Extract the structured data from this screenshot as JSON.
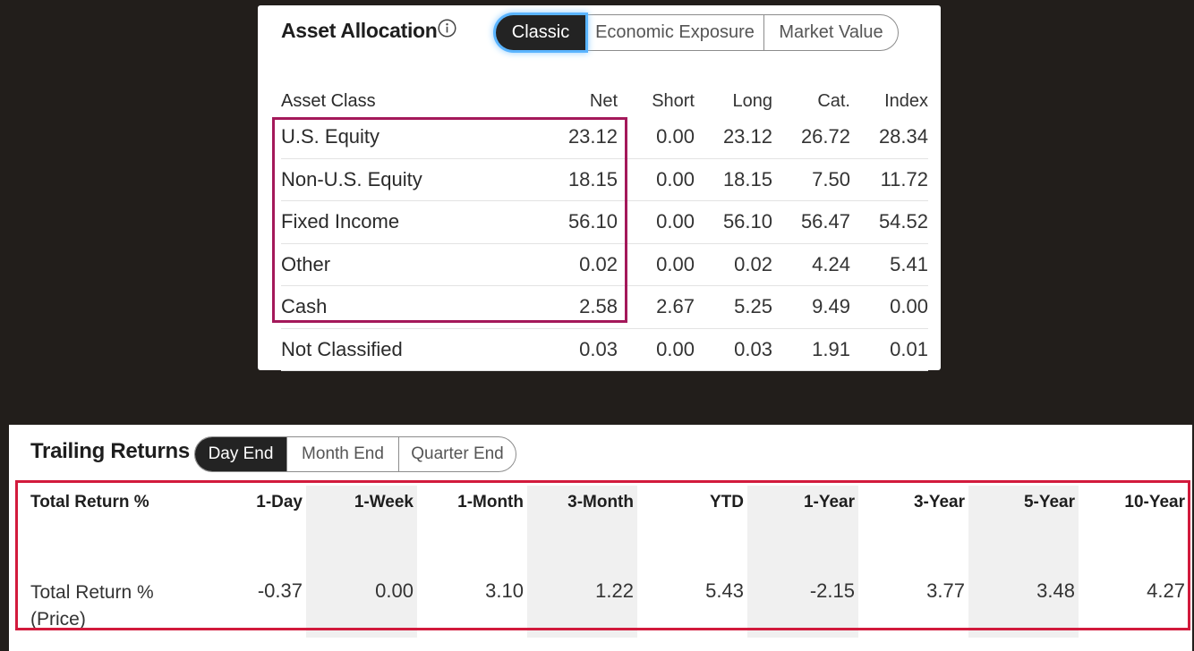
{
  "asset_allocation": {
    "title": "Asset Allocation",
    "info_icon": "info-icon",
    "tabs": [
      "Classic",
      "Economic Exposure",
      "Market Value"
    ],
    "active_tab": "Classic",
    "columns": [
      "Asset Class",
      "Net",
      "Short",
      "Long",
      "Cat.",
      "Index"
    ],
    "rows": [
      {
        "name": "U.S. Equity",
        "net": "23.12",
        "short": "0.00",
        "long": "23.12",
        "cat": "26.72",
        "index": "28.34"
      },
      {
        "name": "Non-U.S. Equity",
        "net": "18.15",
        "short": "0.00",
        "long": "18.15",
        "cat": "7.50",
        "index": "11.72"
      },
      {
        "name": "Fixed Income",
        "net": "56.10",
        "short": "0.00",
        "long": "56.10",
        "cat": "56.47",
        "index": "54.52"
      },
      {
        "name": "Other",
        "net": "0.02",
        "short": "0.00",
        "long": "0.02",
        "cat": "4.24",
        "index": "5.41"
      },
      {
        "name": "Cash",
        "net": "2.58",
        "short": "2.67",
        "long": "5.25",
        "cat": "9.49",
        "index": "0.00"
      },
      {
        "name": "Not Classified",
        "net": "0.03",
        "short": "0.00",
        "long": "0.03",
        "cat": "1.91",
        "index": "0.01"
      }
    ],
    "highlight_color": "#a4185a"
  },
  "trailing_returns": {
    "title": "Trailing Returns",
    "tabs": [
      "Day End",
      "Month End",
      "Quarter End"
    ],
    "active_tab": "Day End",
    "row_header": "Total Return %",
    "row_label": "Total Return % (Price)",
    "columns": [
      "1-Day",
      "1-Week",
      "1-Month",
      "3-Month",
      "YTD",
      "1-Year",
      "3-Year",
      "5-Year",
      "10-Year"
    ],
    "values": [
      "-0.37",
      "0.00",
      "3.10",
      "1.22",
      "5.43",
      "-2.15",
      "3.77",
      "3.48",
      "4.27"
    ],
    "highlight_color": "#d21a3c"
  }
}
